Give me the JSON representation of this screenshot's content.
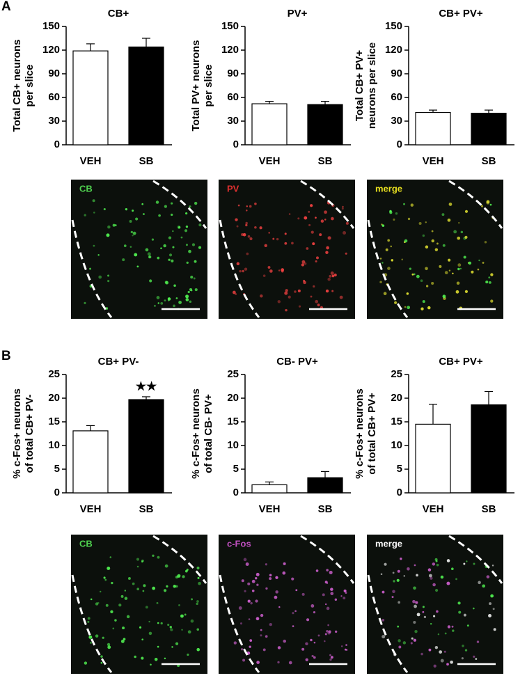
{
  "chart_data": [
    {
      "type": "bar",
      "title": "CB+",
      "ylabel": [
        "Total CB+ neurons",
        "per slice"
      ],
      "categories": [
        "VEH",
        "SB"
      ],
      "values": [
        119,
        124
      ],
      "errors": [
        9,
        11
      ],
      "colors": [
        "#ffffff",
        "#000000"
      ],
      "ylim": [
        0,
        150
      ],
      "yticks": [
        0,
        30,
        60,
        90,
        120,
        150
      ]
    },
    {
      "type": "bar",
      "title": "PV+",
      "ylabel": [
        "Total PV+ neurons",
        "per slice"
      ],
      "categories": [
        "VEH",
        "SB"
      ],
      "values": [
        52,
        51
      ],
      "errors": [
        3,
        4
      ],
      "colors": [
        "#ffffff",
        "#000000"
      ],
      "ylim": [
        0,
        150
      ],
      "yticks": [
        0,
        30,
        60,
        90,
        120,
        150
      ]
    },
    {
      "type": "bar",
      "title": "CB+ PV+",
      "ylabel": [
        "Total CB+ PV+",
        "neurons per slice"
      ],
      "categories": [
        "VEH",
        "SB"
      ],
      "values": [
        41,
        40
      ],
      "errors": [
        3,
        4
      ],
      "colors": [
        "#ffffff",
        "#000000"
      ],
      "ylim": [
        0,
        150
      ],
      "yticks": [
        0,
        30,
        60,
        90,
        120,
        150
      ]
    },
    {
      "type": "bar",
      "title": "CB+ PV-",
      "ylabel": [
        "% c-Fos+ neurons",
        "of total CB+ PV-"
      ],
      "categories": [
        "VEH",
        "SB"
      ],
      "values": [
        13.1,
        19.7
      ],
      "errors": [
        1.1,
        0.6
      ],
      "colors": [
        "#ffffff",
        "#000000"
      ],
      "ylim": [
        0,
        25
      ],
      "yticks": [
        0,
        5,
        10,
        15,
        20,
        25
      ],
      "annotation": "★★"
    },
    {
      "type": "bar",
      "title": "CB- PV+",
      "ylabel": [
        "% c-Fos+ neurons",
        "of total CB- PV+"
      ],
      "categories": [
        "VEH",
        "SB"
      ],
      "values": [
        1.7,
        3.2
      ],
      "errors": [
        0.6,
        1.3
      ],
      "colors": [
        "#ffffff",
        "#000000"
      ],
      "ylim": [
        0,
        25
      ],
      "yticks": [
        0,
        5,
        10,
        15,
        20,
        25
      ]
    },
    {
      "type": "bar",
      "title": "CB+ PV+",
      "ylabel": [
        "% c-Fos+ neurons",
        "of total CB+ PV+"
      ],
      "categories": [
        "VEH",
        "SB"
      ],
      "values": [
        14.5,
        18.6
      ],
      "errors": [
        4.2,
        2.8
      ],
      "colors": [
        "#ffffff",
        "#000000"
      ],
      "ylim": [
        0,
        25
      ],
      "yticks": [
        0,
        5,
        10,
        15,
        20,
        25
      ]
    }
  ],
  "panels": [
    {
      "letter": "A",
      "images": [
        "CB",
        "PV",
        "merge"
      ]
    },
    {
      "letter": "B",
      "images": [
        "CB",
        "c-Fos",
        "merge"
      ]
    }
  ]
}
